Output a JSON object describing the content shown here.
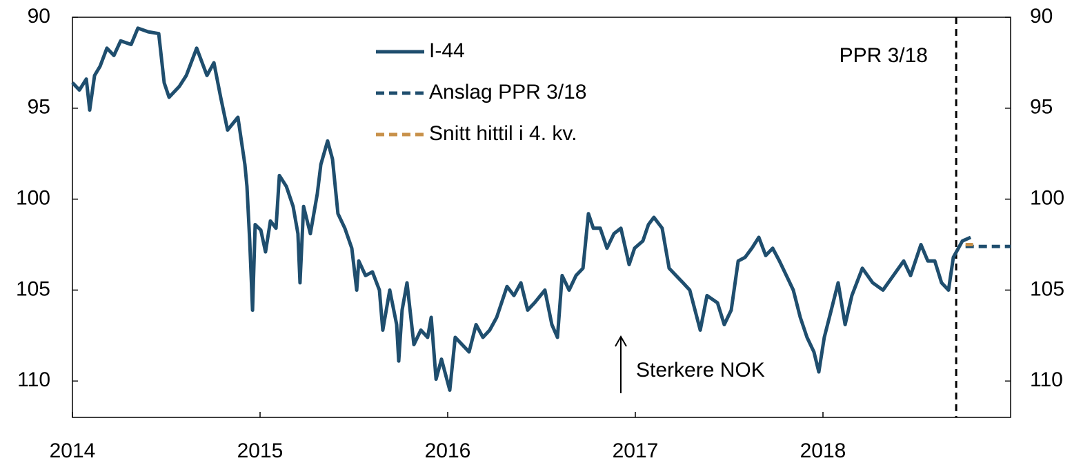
{
  "chart_data": {
    "type": "line",
    "xlim": [
      2014,
      2019
    ],
    "xticks": [
      2014,
      2015,
      2016,
      2017,
      2018
    ],
    "ylim": [
      90,
      112
    ],
    "y_inverted": true,
    "yticks": [
      90,
      95,
      100,
      105,
      110
    ],
    "y2lim": [
      90,
      112
    ],
    "y2ticks": [
      90,
      95,
      100,
      105,
      110
    ],
    "series": [
      {
        "name": "I-44",
        "color": "#1f4e6e",
        "dash": false,
        "x": [
          2014.0,
          2014.037,
          2014.074,
          2014.092,
          2014.118,
          2014.147,
          2014.184,
          2014.221,
          2014.257,
          2014.313,
          2014.349,
          2014.404,
          2014.46,
          2014.489,
          2014.515,
          2014.57,
          2014.607,
          2014.662,
          2014.717,
          2014.754,
          2014.79,
          2014.827,
          2014.882,
          2014.919,
          2014.93,
          2014.945,
          2014.96,
          2014.974,
          2015.004,
          2015.029,
          2015.055,
          2015.085,
          2015.103,
          2015.14,
          2015.176,
          2015.202,
          2015.213,
          2015.232,
          2015.268,
          2015.305,
          2015.324,
          2015.36,
          2015.386,
          2015.415,
          2015.452,
          2015.489,
          2015.515,
          2015.526,
          2015.562,
          2015.599,
          2015.636,
          2015.654,
          2015.691,
          2015.728,
          2015.739,
          2015.757,
          2015.783,
          2015.82,
          2015.857,
          2015.893,
          2015.912,
          2015.938,
          2015.967,
          2015.985,
          2016.011,
          2016.04,
          2016.077,
          2016.114,
          2016.151,
          2016.188,
          2016.224,
          2016.261,
          2016.316,
          2016.353,
          2016.39,
          2016.426,
          2016.463,
          2016.518,
          2016.555,
          2016.585,
          2016.61,
          2016.647,
          2016.684,
          2016.721,
          2016.75,
          2016.776,
          2016.813,
          2016.849,
          2016.886,
          2016.923,
          2016.967,
          2016.996,
          2017.04,
          2017.07,
          2017.099,
          2017.143,
          2017.18,
          2017.217,
          2017.254,
          2017.29,
          2017.346,
          2017.382,
          2017.438,
          2017.474,
          2017.511,
          2017.548,
          2017.585,
          2017.621,
          2017.658,
          2017.695,
          2017.732,
          2017.768,
          2017.805,
          2017.842,
          2017.879,
          2017.915,
          2017.952,
          2017.978,
          2018.007,
          2018.044,
          2018.081,
          2018.118,
          2018.154,
          2018.21,
          2018.265,
          2018.32,
          2018.375,
          2018.43,
          2018.467,
          2018.522,
          2018.559,
          2018.596,
          2018.632,
          2018.669,
          2018.695,
          2018.743,
          2018.787
        ],
        "values": [
          93.6,
          94.0,
          93.4,
          95.1,
          93.2,
          92.7,
          91.7,
          92.1,
          91.3,
          91.5,
          90.6,
          90.8,
          90.9,
          93.6,
          94.4,
          93.8,
          93.2,
          91.7,
          93.2,
          92.5,
          94.4,
          96.2,
          95.5,
          98.1,
          99.3,
          102.3,
          106.1,
          101.4,
          101.7,
          102.9,
          101.2,
          101.6,
          98.7,
          99.3,
          100.4,
          101.9,
          104.6,
          100.4,
          101.9,
          99.7,
          98.1,
          96.8,
          97.8,
          100.8,
          101.6,
          102.7,
          105.0,
          103.4,
          104.2,
          104.0,
          105.0,
          107.2,
          105.0,
          106.9,
          108.9,
          106.1,
          104.6,
          108.0,
          107.2,
          107.6,
          106.5,
          109.9,
          108.8,
          109.5,
          110.5,
          107.6,
          108.0,
          108.4,
          106.9,
          107.6,
          107.2,
          106.5,
          104.8,
          105.3,
          104.6,
          106.1,
          105.7,
          105.0,
          106.9,
          107.6,
          104.2,
          105.0,
          104.2,
          103.8,
          100.8,
          101.6,
          101.6,
          102.7,
          101.9,
          101.6,
          103.6,
          102.7,
          102.3,
          101.4,
          101.0,
          101.6,
          103.8,
          104.2,
          104.6,
          105.0,
          107.2,
          105.3,
          105.7,
          106.9,
          106.1,
          103.4,
          103.2,
          102.7,
          102.1,
          103.1,
          102.7,
          103.4,
          104.2,
          105.0,
          106.5,
          107.6,
          108.4,
          109.5,
          107.6,
          106.1,
          104.6,
          106.9,
          105.3,
          103.8,
          104.6,
          105.0,
          104.2,
          103.4,
          104.2,
          102.5,
          103.4,
          103.4,
          104.6,
          105.0,
          103.2,
          102.3,
          102.1
        ]
      },
      {
        "name": "Anslag PPR 3/18",
        "color": "#1f4e6e",
        "dash": true,
        "x": [
          2018.76,
          2019.0
        ],
        "values": [
          102.6,
          102.6
        ]
      },
      {
        "name": "Snitt hittil i 4. kv.",
        "color": "#c8914a",
        "dash": true,
        "x": [
          2018.76,
          2018.8
        ],
        "values": [
          102.5,
          102.5
        ]
      }
    ],
    "vline": {
      "x": 2018.71,
      "label": "PPR 3/18"
    },
    "annotation": "Sterkere NOK"
  }
}
